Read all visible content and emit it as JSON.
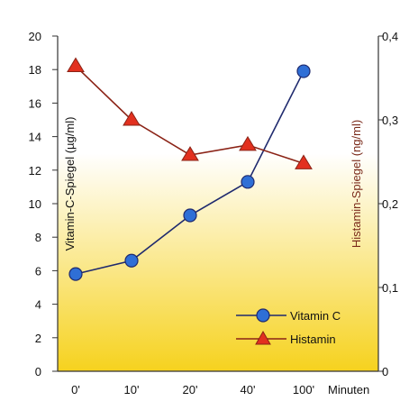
{
  "chart_data": {
    "type": "line",
    "categories": [
      "0'",
      "10'",
      "20'",
      "40'",
      "100'"
    ],
    "xlabel": "Minuten",
    "ylabel_left": "Vitamin-C-Spiegel (µg/ml)",
    "ylabel_right": "Histamin-Spiegel (ng/ml)",
    "ylim_left": [
      0,
      20
    ],
    "yticks_left": [
      "0",
      "2",
      "4",
      "6",
      "8",
      "10",
      "12",
      "14",
      "16",
      "18",
      "20"
    ],
    "ylim_right": [
      0,
      0.4
    ],
    "yticks_right": [
      "0",
      "0,1",
      "0,2",
      "0,3",
      "0,4"
    ],
    "yticks_right_values": [
      0,
      0.1,
      0.2,
      0.3,
      0.4
    ],
    "series": [
      {
        "name": "Vitamin C",
        "axis": "left",
        "marker": "circle",
        "line_color": "#1f2a6e",
        "marker_color": "#2f6fd6",
        "values": [
          5.8,
          6.6,
          9.3,
          11.3,
          17.9
        ]
      },
      {
        "name": "Histamin",
        "axis": "right",
        "marker": "triangle",
        "line_color": "#8b2316",
        "marker_color": "#e2301f",
        "values": [
          0.364,
          0.3,
          0.258,
          0.27,
          0.248
        ]
      }
    ],
    "legend_position": "bottom-right",
    "background": "yellow-gradient",
    "grid": false
  },
  "colors": {
    "gradient_top": "#ffffff",
    "gradient_bottom": "#f6d21e",
    "axis": "#333333",
    "right_axis_label": "#7a2a1a"
  }
}
